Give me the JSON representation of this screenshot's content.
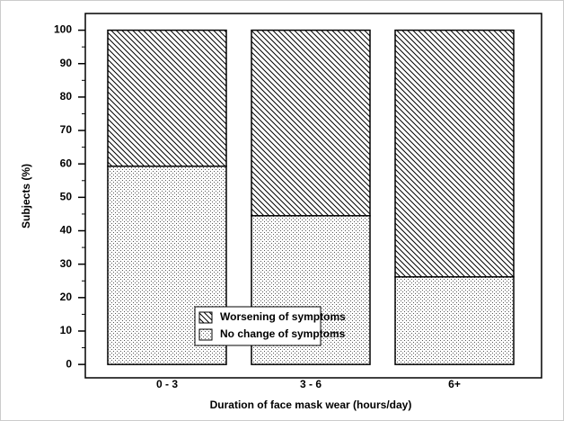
{
  "chart_data": {
    "type": "stacked_bar",
    "categories": [
      "0 - 3",
      "3 - 6",
      "6+"
    ],
    "series": [
      {
        "name": "No change of symptoms",
        "pattern": "dots",
        "values": [
          59.3,
          44.5,
          26.2
        ]
      },
      {
        "name": "Worsening of symptoms",
        "pattern": "hatch",
        "values": [
          40.7,
          55.5,
          73.8
        ]
      }
    ],
    "ylim": [
      -4,
      105
    ],
    "yticks": [
      0,
      10,
      20,
      30,
      40,
      50,
      60,
      70,
      80,
      90,
      100
    ],
    "ylabel": "Subjects (%)",
    "xlabel": "Duration of face mask wear (hours/day)",
    "legend": "lower center"
  }
}
